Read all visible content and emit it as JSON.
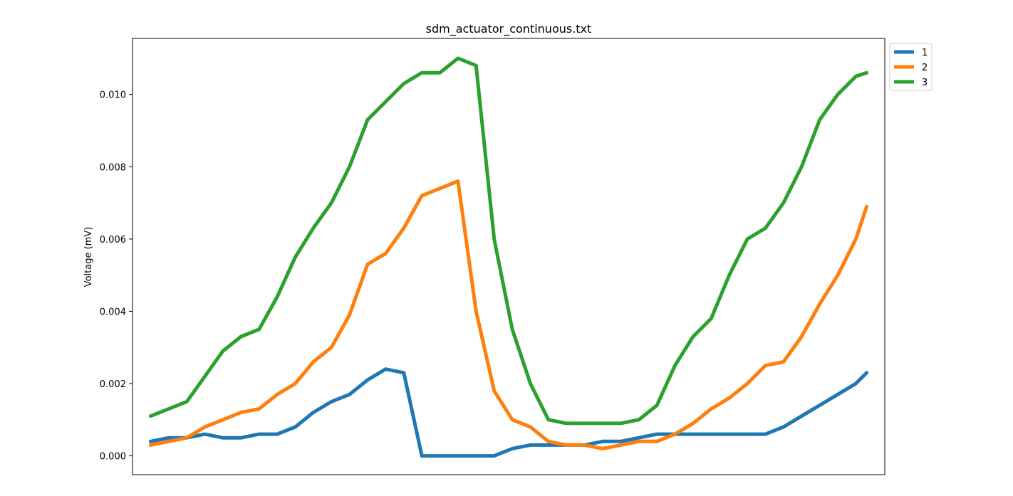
{
  "chart_data": {
    "type": "line",
    "title": "sdm_actuator_continuous.txt",
    "xlabel": "",
    "ylabel": "Voltage (mV)",
    "ylim": [
      -0.00052,
      0.01155
    ],
    "yticks": [
      0.0,
      0.002,
      0.004,
      0.006,
      0.008,
      0.01
    ],
    "ytick_labels": [
      "0.000",
      "0.002",
      "0.004",
      "0.006",
      "0.008",
      "0.010"
    ],
    "xlim": [
      -10,
      406
    ],
    "show_xticks": false,
    "grid": false,
    "legend_position": "outside-top-right",
    "x": [
      0,
      10,
      20,
      30,
      40,
      50,
      60,
      70,
      80,
      90,
      100,
      110,
      120,
      130,
      140,
      150,
      160,
      170,
      180,
      190,
      200,
      210,
      220,
      230,
      240,
      250,
      260,
      270,
      280,
      290,
      300,
      310,
      320,
      330,
      340,
      350,
      360,
      370,
      380,
      390,
      396
    ],
    "series": [
      {
        "name": "1",
        "color": "#1f77b4",
        "values": [
          0.0004,
          0.0005,
          0.0005,
          0.0006,
          0.0005,
          0.0005,
          0.0006,
          0.0006,
          0.0008,
          0.0012,
          0.0015,
          0.0017,
          0.0021,
          0.0024,
          0.0023,
          0.0,
          0.0,
          0.0,
          0.0,
          0.0,
          0.0002,
          0.0003,
          0.0003,
          0.0003,
          0.0003,
          0.0004,
          0.0004,
          0.0005,
          0.0006,
          0.0006,
          0.0006,
          0.0006,
          0.0006,
          0.0006,
          0.0006,
          0.0008,
          0.0011,
          0.0014,
          0.0017,
          0.002,
          0.0023
        ]
      },
      {
        "name": "2",
        "color": "#ff7f0e",
        "values": [
          0.0003,
          0.0004,
          0.0005,
          0.0008,
          0.001,
          0.0012,
          0.0013,
          0.0017,
          0.002,
          0.0026,
          0.003,
          0.0039,
          0.0053,
          0.0056,
          0.0063,
          0.0072,
          0.0074,
          0.0076,
          0.004,
          0.0018,
          0.001,
          0.0008,
          0.0004,
          0.0003,
          0.0003,
          0.0002,
          0.0003,
          0.0004,
          0.0004,
          0.0006,
          0.0009,
          0.0013,
          0.0016,
          0.002,
          0.0025,
          0.0026,
          0.0033,
          0.0042,
          0.005,
          0.006,
          0.0069
        ]
      },
      {
        "name": "3",
        "color": "#2ca02c",
        "values": [
          0.0011,
          0.0013,
          0.0015,
          0.0022,
          0.0029,
          0.0033,
          0.0035,
          0.0044,
          0.0055,
          0.0063,
          0.007,
          0.008,
          0.0093,
          0.0098,
          0.0103,
          0.0106,
          0.0106,
          0.011,
          0.0108,
          0.006,
          0.0035,
          0.002,
          0.001,
          0.0009,
          0.0009,
          0.0009,
          0.0009,
          0.001,
          0.0014,
          0.0025,
          0.0033,
          0.0038,
          0.005,
          0.006,
          0.0063,
          0.007,
          0.008,
          0.0093,
          0.01,
          0.0105,
          0.0106
        ]
      }
    ]
  }
}
